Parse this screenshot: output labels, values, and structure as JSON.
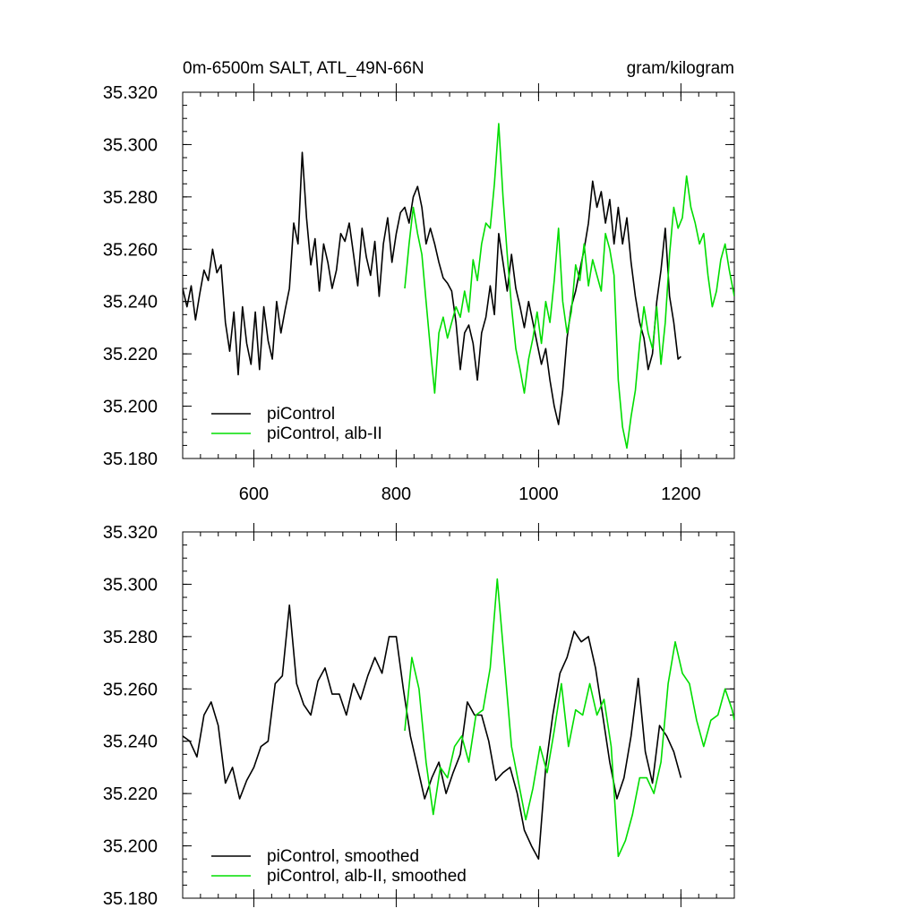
{
  "title_left": "0m-6500m SALT, ATL_49N-66N",
  "title_right": "gram/kilogram",
  "chart_data": [
    {
      "type": "line",
      "xlim": [
        500,
        1275
      ],
      "ylim": [
        35.18,
        35.32
      ],
      "xticks": [
        600,
        800,
        1000,
        1200
      ],
      "xtick_labels": [
        "600",
        "800",
        "1000",
        "1200"
      ],
      "yticks": [
        35.18,
        35.2,
        35.22,
        35.24,
        35.26,
        35.28,
        35.3,
        35.32
      ],
      "ytick_labels": [
        "35.180",
        "35.200",
        "35.220",
        "35.240",
        "35.260",
        "35.280",
        "35.300",
        "35.320"
      ],
      "legend_position": "bottom-left",
      "series": [
        {
          "name": "piControl",
          "color": "#000000",
          "x": [
            500,
            506,
            512,
            518,
            524,
            530,
            536,
            542,
            548,
            554,
            560,
            566,
            572,
            578,
            584,
            590,
            596,
            602,
            608,
            614,
            620,
            626,
            632,
            638,
            644,
            650,
            656,
            662,
            668,
            674,
            680,
            686,
            692,
            698,
            704,
            710,
            716,
            722,
            728,
            734,
            740,
            746,
            752,
            758,
            764,
            770,
            776,
            782,
            788,
            794,
            800,
            806,
            812,
            818,
            824,
            830,
            836,
            842,
            848,
            854,
            860,
            866,
            872,
            878,
            884,
            890,
            896,
            902,
            908,
            914,
            920,
            926,
            932,
            938,
            944,
            950,
            956,
            962,
            968,
            974,
            980,
            986,
            992,
            998,
            1004,
            1010,
            1016,
            1022,
            1028,
            1034,
            1040,
            1046,
            1052,
            1058,
            1064,
            1070,
            1076,
            1082,
            1088,
            1094,
            1100,
            1106,
            1112,
            1118,
            1124,
            1130,
            1136,
            1142,
            1148,
            1154,
            1160,
            1166,
            1172,
            1178,
            1184,
            1190,
            1196,
            1200
          ],
          "y": [
            35.245,
            35.238,
            35.246,
            35.233,
            35.243,
            35.252,
            35.248,
            35.26,
            35.251,
            35.254,
            35.232,
            35.221,
            35.236,
            35.212,
            35.238,
            35.224,
            35.216,
            35.236,
            35.214,
            35.238,
            35.225,
            35.218,
            35.24,
            35.228,
            35.237,
            35.245,
            35.27,
            35.262,
            35.297,
            35.272,
            35.254,
            35.264,
            35.244,
            35.262,
            35.255,
            35.245,
            35.252,
            35.266,
            35.263,
            35.27,
            35.258,
            35.246,
            35.268,
            35.257,
            35.25,
            35.263,
            35.242,
            35.262,
            35.272,
            35.255,
            35.266,
            35.274,
            35.276,
            35.27,
            35.28,
            35.284,
            35.276,
            35.262,
            35.268,
            35.262,
            35.255,
            35.249,
            35.247,
            35.244,
            35.232,
            35.214,
            35.228,
            35.231,
            35.224,
            35.21,
            35.228,
            35.234,
            35.246,
            35.235,
            35.266,
            35.255,
            35.244,
            35.258,
            35.245,
            35.238,
            35.23,
            35.24,
            35.232,
            35.224,
            35.216,
            35.222,
            35.21,
            35.2,
            35.193,
            35.206,
            35.226,
            35.238,
            35.244,
            35.252,
            35.26,
            35.27,
            35.286,
            35.276,
            35.282,
            35.27,
            35.279,
            35.262,
            35.276,
            35.262,
            35.272,
            35.255,
            35.242,
            35.232,
            35.226,
            35.214,
            35.22,
            35.24,
            35.252,
            35.268,
            35.242,
            35.232,
            35.218,
            35.219
          ],
          "values_are_estimated": true
        },
        {
          "name": "piControl, alb-II",
          "color": "#00dd00",
          "x": [
            812,
            818,
            824,
            830,
            836,
            842,
            848,
            854,
            860,
            866,
            872,
            878,
            884,
            890,
            896,
            902,
            908,
            914,
            920,
            926,
            932,
            938,
            944,
            950,
            956,
            962,
            968,
            974,
            980,
            986,
            992,
            998,
            1004,
            1010,
            1016,
            1022,
            1028,
            1034,
            1040,
            1046,
            1052,
            1058,
            1064,
            1070,
            1076,
            1082,
            1088,
            1094,
            1100,
            1106,
            1112,
            1118,
            1124,
            1130,
            1136,
            1142,
            1148,
            1154,
            1160,
            1166,
            1172,
            1178,
            1184,
            1190,
            1196,
            1202,
            1208,
            1214,
            1220,
            1226,
            1232,
            1238,
            1244,
            1250,
            1256,
            1262,
            1268,
            1275
          ],
          "y": [
            35.245,
            35.262,
            35.276,
            35.266,
            35.258,
            35.24,
            35.222,
            35.205,
            35.228,
            35.234,
            35.226,
            35.232,
            35.238,
            35.234,
            35.244,
            35.236,
            35.256,
            35.248,
            35.262,
            35.27,
            35.268,
            35.285,
            35.308,
            35.28,
            35.258,
            35.238,
            35.222,
            35.214,
            35.205,
            35.218,
            35.226,
            35.236,
            35.224,
            35.24,
            35.232,
            35.248,
            35.268,
            35.24,
            35.228,
            35.236,
            35.254,
            35.248,
            35.262,
            35.246,
            35.256,
            35.25,
            35.244,
            35.266,
            35.26,
            35.25,
            35.21,
            35.192,
            35.184,
            35.196,
            35.206,
            35.224,
            35.238,
            35.228,
            35.222,
            35.238,
            35.216,
            35.232,
            35.258,
            35.276,
            35.268,
            35.272,
            35.288,
            35.276,
            35.27,
            35.262,
            35.266,
            35.25,
            35.238,
            35.244,
            35.256,
            35.262,
            35.252,
            35.242
          ],
          "values_are_estimated": true
        }
      ]
    },
    {
      "type": "line",
      "xlim": [
        500,
        1275
      ],
      "ylim": [
        35.18,
        35.32
      ],
      "xticks": [
        600,
        800,
        1000,
        1200
      ],
      "yticks": [
        35.18,
        35.2,
        35.22,
        35.24,
        35.26,
        35.28,
        35.3,
        35.32
      ],
      "ytick_labels": [
        "35.180",
        "35.200",
        "35.220",
        "35.240",
        "35.260",
        "35.280",
        "35.300",
        "35.320"
      ],
      "legend_position": "bottom-left",
      "series": [
        {
          "name": "piControl, smoothed",
          "color": "#000000",
          "x": [
            500,
            510,
            520,
            530,
            540,
            550,
            560,
            570,
            580,
            590,
            600,
            610,
            620,
            630,
            640,
            650,
            660,
            670,
            680,
            690,
            700,
            710,
            720,
            730,
            740,
            750,
            760,
            770,
            780,
            790,
            800,
            810,
            820,
            830,
            840,
            850,
            860,
            870,
            880,
            890,
            900,
            910,
            920,
            930,
            940,
            950,
            960,
            970,
            980,
            990,
            1000,
            1010,
            1020,
            1030,
            1040,
            1050,
            1060,
            1070,
            1080,
            1090,
            1100,
            1110,
            1120,
            1130,
            1140,
            1150,
            1160,
            1170,
            1180,
            1190,
            1200
          ],
          "y": [
            35.242,
            35.24,
            35.234,
            35.25,
            35.255,
            35.246,
            35.224,
            35.23,
            35.218,
            35.225,
            35.23,
            35.238,
            35.24,
            35.262,
            35.265,
            35.292,
            35.262,
            35.254,
            35.25,
            35.263,
            35.268,
            35.258,
            35.258,
            35.25,
            35.262,
            35.256,
            35.265,
            35.272,
            35.266,
            35.28,
            35.28,
            35.26,
            35.242,
            35.23,
            35.218,
            35.226,
            35.232,
            35.22,
            35.228,
            35.235,
            35.255,
            35.25,
            35.25,
            35.24,
            35.225,
            35.228,
            35.23,
            35.22,
            35.206,
            35.2,
            35.195,
            35.23,
            35.25,
            35.266,
            35.272,
            35.282,
            35.278,
            35.28,
            35.268,
            35.25,
            35.232,
            35.218,
            35.226,
            35.242,
            35.264,
            35.236,
            35.224,
            35.246,
            35.242,
            35.236,
            35.226
          ],
          "values_are_estimated": true
        },
        {
          "name": "piControl, alb-II, smoothed",
          "color": "#00dd00",
          "x": [
            812,
            822,
            832,
            842,
            852,
            862,
            872,
            882,
            892,
            902,
            912,
            922,
            932,
            942,
            952,
            962,
            972,
            982,
            992,
            1002,
            1012,
            1022,
            1032,
            1042,
            1052,
            1062,
            1072,
            1082,
            1092,
            1102,
            1112,
            1122,
            1132,
            1142,
            1152,
            1162,
            1172,
            1182,
            1192,
            1202,
            1212,
            1222,
            1232,
            1242,
            1252,
            1262,
            1272,
            1275
          ],
          "y": [
            35.244,
            35.272,
            35.26,
            35.232,
            35.212,
            35.23,
            35.226,
            35.238,
            35.242,
            35.232,
            35.25,
            35.252,
            35.268,
            35.302,
            35.27,
            35.238,
            35.224,
            35.21,
            35.222,
            35.238,
            35.228,
            35.244,
            35.262,
            35.238,
            35.252,
            35.25,
            35.262,
            35.25,
            35.256,
            35.238,
            35.196,
            35.202,
            35.212,
            35.226,
            35.226,
            35.22,
            35.232,
            35.262,
            35.278,
            35.266,
            35.262,
            35.248,
            35.238,
            35.248,
            35.25,
            35.26,
            35.252,
            35.248
          ],
          "values_are_estimated": true
        }
      ]
    }
  ]
}
